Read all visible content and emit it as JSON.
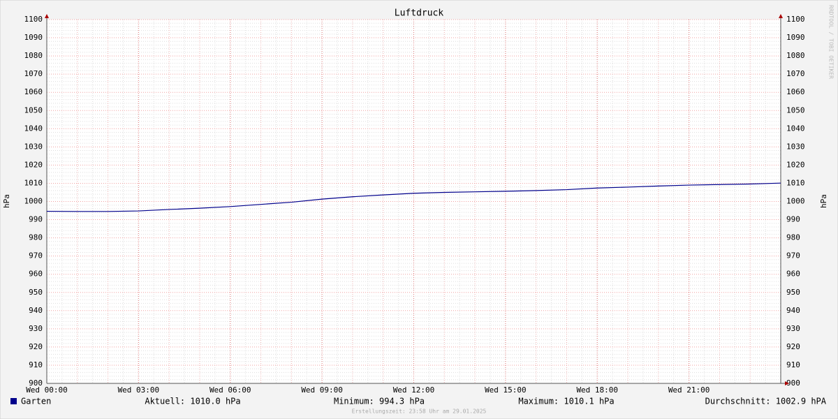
{
  "chart_data": {
    "type": "line",
    "title": "Luftdruck",
    "y_label": "hPa",
    "y2_label": "hPa",
    "watermark": "RRDTOOL / TOBI OETIKER",
    "x": [
      0,
      1,
      2,
      3,
      4,
      5,
      6,
      7,
      8,
      9,
      10,
      11,
      12,
      13,
      14,
      15,
      16,
      17,
      18,
      19,
      20,
      21,
      22,
      23,
      24
    ],
    "xlim": [
      0,
      24
    ],
    "xticks": [
      {
        "value": 0,
        "label": "Wed 00:00"
      },
      {
        "value": 3,
        "label": "Wed 03:00"
      },
      {
        "value": 6,
        "label": "Wed 06:00"
      },
      {
        "value": 9,
        "label": "Wed 09:00"
      },
      {
        "value": 12,
        "label": "Wed 12:00"
      },
      {
        "value": 15,
        "label": "Wed 15:00"
      },
      {
        "value": 18,
        "label": "Wed 18:00"
      },
      {
        "value": 21,
        "label": "Wed 21:00"
      }
    ],
    "ylim": [
      900,
      1100
    ],
    "yticks": [
      900,
      910,
      920,
      930,
      940,
      950,
      960,
      970,
      980,
      990,
      1000,
      1010,
      1020,
      1030,
      1040,
      1050,
      1060,
      1070,
      1080,
      1090,
      1100
    ],
    "grid": true,
    "series": [
      {
        "name": "Garten",
        "color": "#00008b",
        "values": [
          994.6,
          994.5,
          994.5,
          994.8,
          995.6,
          996.3,
          997.2,
          998.4,
          999.6,
          1001.3,
          1002.6,
          1003.6,
          1004.5,
          1005.0,
          1005.3,
          1005.6,
          1006.0,
          1006.5,
          1007.4,
          1007.9,
          1008.5,
          1009.0,
          1009.3,
          1009.6,
          1010.1
        ]
      }
    ],
    "stats": [
      "Aktuell: 1010.0 hPa",
      "Minimum: 994.3 hPa",
      "Maximum: 1010.1 hPa",
      "Durchschnitt: 1002.9 hPA"
    ],
    "footer": "Erstellungszeit: 23:58 Uhr am 29.01.2025"
  }
}
